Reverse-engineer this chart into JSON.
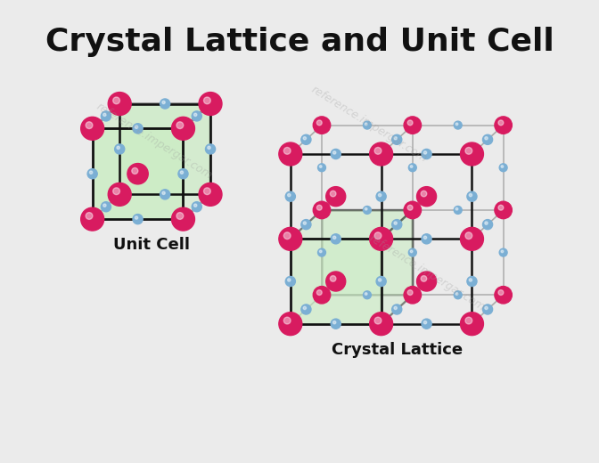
{
  "title": "Crystal Lattice and Unit Cell",
  "title_fontsize": 26,
  "title_fontweight": "bold",
  "background_color": "#ebebeb",
  "label_unit_cell": "Unit Cell",
  "label_crystal_lattice": "Crystal Lattice",
  "label_fontsize": 13,
  "label_fontweight": "bold",
  "atom_large_color": "#d81b60",
  "atom_small_color": "#7bafd4",
  "face_color": "#c8edc0",
  "face_alpha": 0.75,
  "edge_color": "#111111",
  "edge_linewidth": 1.8,
  "depth_edge_color": "#aaaaaa",
  "depth_edge_linewidth": 1.2,
  "watermark_text": "reference.impergar.com",
  "watermark_color": "#999999",
  "watermark_alpha": 0.3,
  "watermark_fontsize": 9
}
